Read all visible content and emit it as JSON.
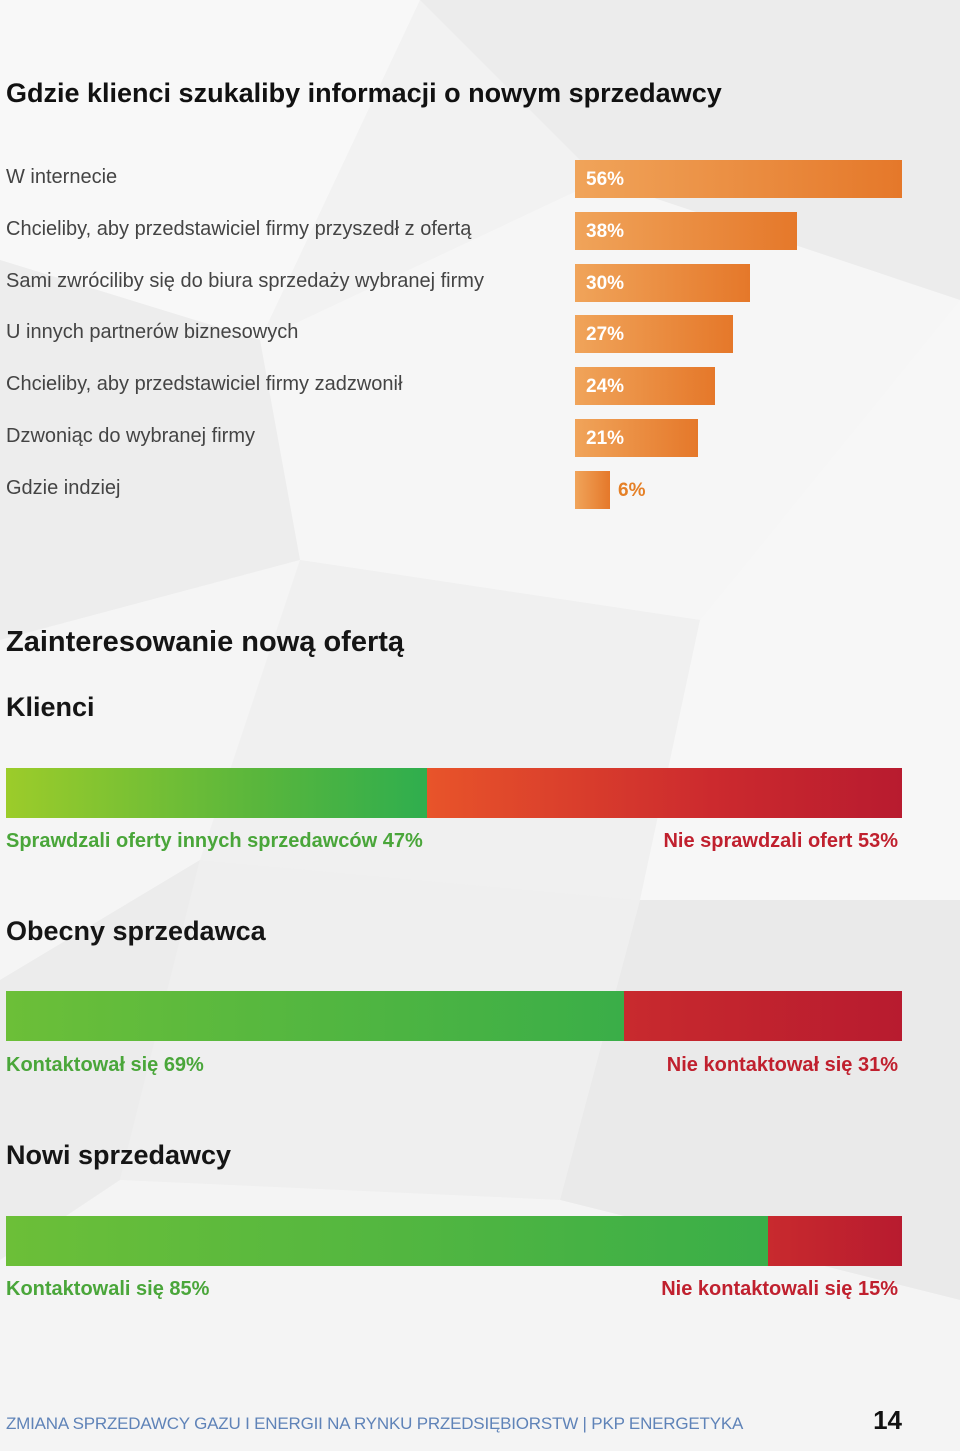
{
  "section1": {
    "title": "Gdzie klienci szukaliby informacji o nowym sprzedawcy"
  },
  "chart_data": [
    {
      "type": "bar",
      "orientation": "horizontal",
      "title": "Gdzie klienci szukaliby informacji o nowym sprzedawcy",
      "categories": [
        "W internecie",
        "Chcieliby, aby przedstawiciel firmy przyszedł z ofertą",
        "Sami zwróciliby się do biura sprzedaży wybranej firmy",
        "U innych partnerów biznesowych",
        "Chcieliby, aby przedstawiciel firmy zadzwonił",
        "Dzwoniąc do wybranej firmy",
        "Gdzie indziej"
      ],
      "values": [
        56,
        38,
        30,
        27,
        24,
        21,
        6
      ],
      "value_labels": [
        "56%",
        "38%",
        "30%",
        "27%",
        "24%",
        "21%",
        "6%"
      ],
      "bar_color": "#e5782a"
    },
    {
      "type": "bar",
      "orientation": "stacked-horizontal",
      "title": "Klienci",
      "series": [
        {
          "name": "Sprawdzali oferty innych sprzedawców",
          "values": [
            47
          ],
          "label": "Sprawdzali oferty innych sprzedawców 47%",
          "color": "#59b63c"
        },
        {
          "name": "Nie sprawdzali ofert",
          "values": [
            53
          ],
          "label": "Nie sprawdzali ofert 53%",
          "color": "#c0202e"
        }
      ]
    },
    {
      "type": "bar",
      "orientation": "stacked-horizontal",
      "title": "Obecny sprzedawca",
      "series": [
        {
          "name": "Kontaktował się",
          "values": [
            69
          ],
          "label": "Kontaktował się 69%",
          "color": "#3aae48"
        },
        {
          "name": "Nie kontaktował się",
          "values": [
            31
          ],
          "label": "Nie kontaktował się 31%",
          "color": "#c0202e"
        }
      ]
    },
    {
      "type": "bar",
      "orientation": "stacked-horizontal",
      "title": "Nowi sprzedawcy",
      "series": [
        {
          "name": "Kontaktowali się",
          "values": [
            85
          ],
          "label": "Kontaktowali się 85%",
          "color": "#3aae48"
        },
        {
          "name": "Nie kontaktowali się",
          "values": [
            15
          ],
          "label": "Nie kontaktowali się 15%",
          "color": "#c0202e"
        }
      ]
    }
  ],
  "section2": {
    "title": "Zainteresowanie nową ofertą"
  },
  "footer": {
    "text": "ZMIANA SPRZEDAWCY GAZU I ENERGII NA RYNKU PRZEDSIĘBIORSTW | PKP ENERGETYKA",
    "page_number": "14"
  }
}
